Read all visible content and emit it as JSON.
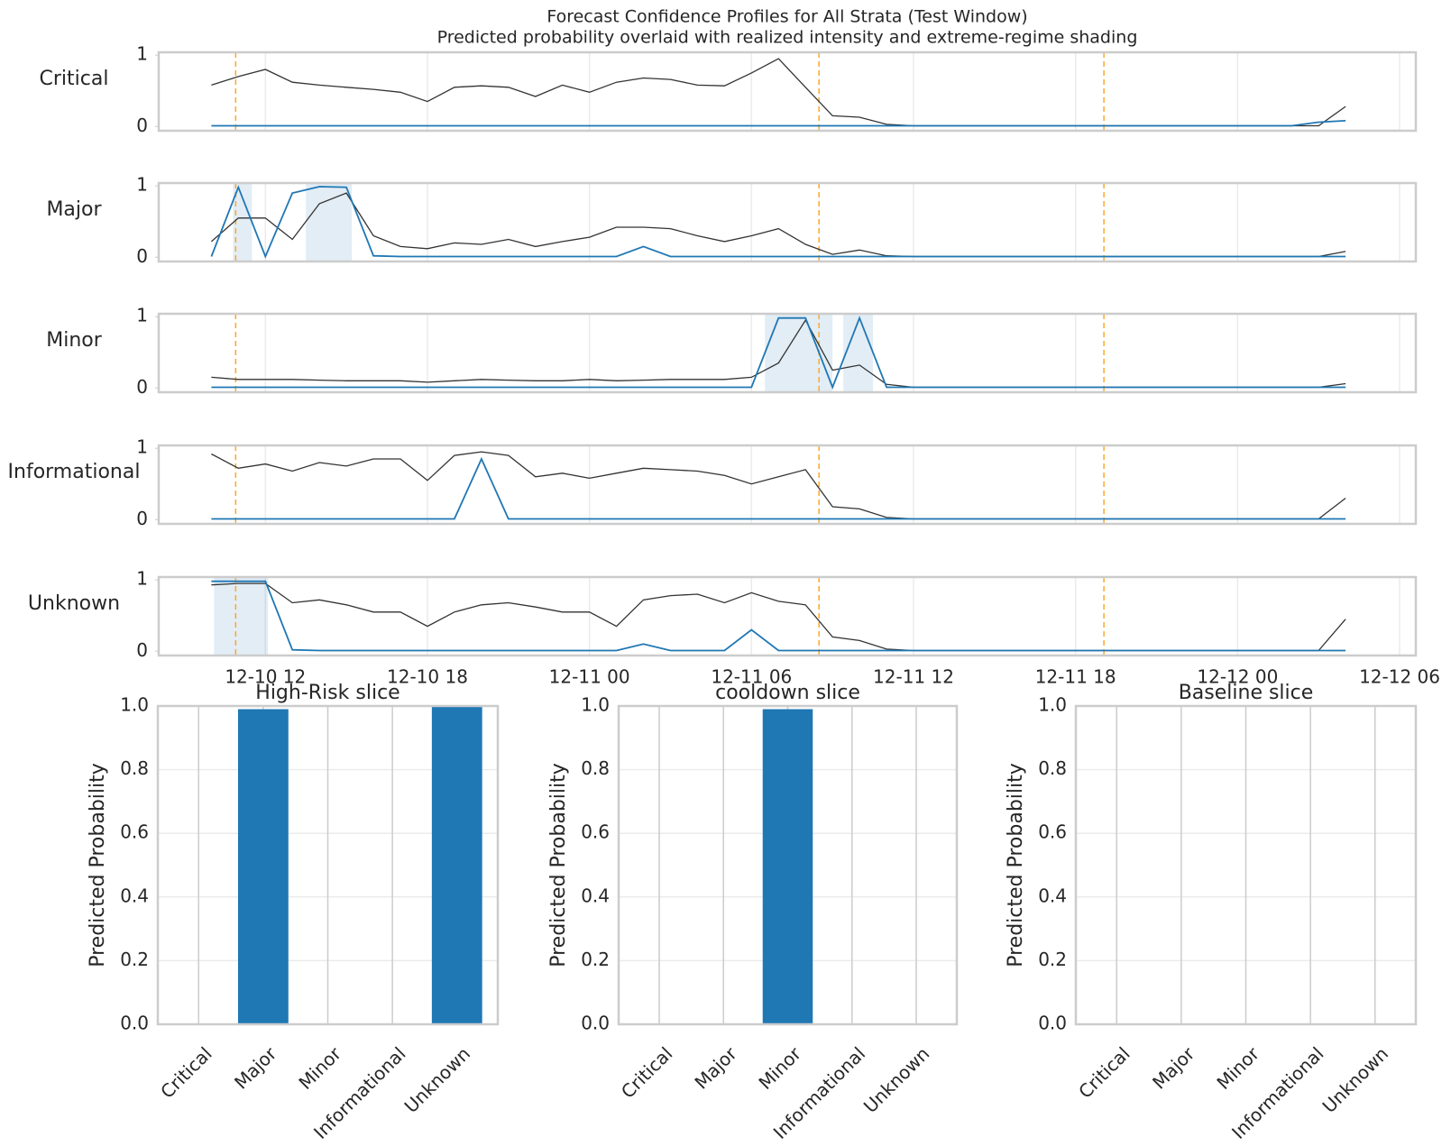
{
  "suptitle": "Forecast Confidence Profiles for All Strata (Test Window)",
  "subtitle": "Predicted probability overlaid with realized intensity and extreme-regime shading",
  "shared_x": {
    "x": [
      10,
      11,
      12,
      13,
      14,
      15,
      16,
      17,
      18,
      19,
      20,
      21,
      22,
      23,
      24,
      25,
      26,
      27,
      28,
      29,
      30,
      31,
      32,
      33,
      34,
      35,
      36,
      37,
      38,
      39,
      40,
      41,
      42,
      43,
      44,
      45,
      46,
      47,
      48,
      49,
      50,
      51,
      52
    ],
    "xlim": [
      8.05,
      54.6
    ],
    "xticks": [
      {
        "value": 12,
        "label": "12-10 12"
      },
      {
        "value": 18,
        "label": "12-10 18"
      },
      {
        "value": 24,
        "label": "12-11 00"
      },
      {
        "value": 30,
        "label": "12-11 06"
      },
      {
        "value": 36,
        "label": "12-11 12"
      },
      {
        "value": 42,
        "label": "12-11 18"
      },
      {
        "value": 48,
        "label": "12-12 00"
      },
      {
        "value": 54,
        "label": "12-12 06"
      }
    ],
    "vlines": [
      10.9,
      32.5,
      43.05
    ],
    "vline_color": "#ffa726"
  },
  "chart_data": [
    {
      "type": "line",
      "ylabel": "Critical",
      "ylim": [
        -0.06,
        1.04
      ],
      "yticks": [
        0,
        1
      ],
      "grid": true,
      "spans": [],
      "span_color": "#1f77b4",
      "series": [
        {
          "color": "#333333",
          "values": [
            0.58,
            0.7,
            0.8,
            0.62,
            0.58,
            0.55,
            0.52,
            0.48,
            0.35,
            0.55,
            0.57,
            0.55,
            0.42,
            0.58,
            0.48,
            0.62,
            0.68,
            0.66,
            0.58,
            0.57,
            0.75,
            0.95,
            0.55,
            0.15,
            0.13,
            0.03,
            0.01,
            0.01,
            0.01,
            0.01,
            0.01,
            0.01,
            0.01,
            0.01,
            0.01,
            0.01,
            0.01,
            0.01,
            0.01,
            0.01,
            0.01,
            0.01,
            0.28
          ]
        },
        {
          "color": "#1f77b4",
          "values": [
            0.01,
            0.01,
            0.01,
            0.01,
            0.01,
            0.01,
            0.01,
            0.01,
            0.01,
            0.01,
            0.01,
            0.01,
            0.01,
            0.01,
            0.01,
            0.01,
            0.01,
            0.01,
            0.01,
            0.01,
            0.01,
            0.01,
            0.01,
            0.01,
            0.01,
            0.01,
            0.01,
            0.01,
            0.01,
            0.01,
            0.01,
            0.01,
            0.01,
            0.01,
            0.01,
            0.01,
            0.01,
            0.01,
            0.01,
            0.01,
            0.01,
            0.06,
            0.08
          ]
        }
      ]
    },
    {
      "type": "line",
      "ylabel": "Major",
      "ylim": [
        -0.06,
        1.04
      ],
      "yticks": [
        0,
        1
      ],
      "grid": true,
      "spans": [
        [
          10.8,
          11.5
        ],
        [
          13.5,
          15.2
        ]
      ],
      "span_color": "#1f77b4",
      "series": [
        {
          "color": "#333333",
          "values": [
            0.22,
            0.55,
            0.55,
            0.25,
            0.75,
            0.9,
            0.3,
            0.15,
            0.12,
            0.2,
            0.18,
            0.25,
            0.15,
            0.22,
            0.28,
            0.42,
            0.42,
            0.4,
            0.3,
            0.22,
            0.3,
            0.4,
            0.18,
            0.04,
            0.1,
            0.02,
            0.01,
            0.01,
            0.01,
            0.01,
            0.01,
            0.01,
            0.01,
            0.01,
            0.01,
            0.01,
            0.01,
            0.01,
            0.01,
            0.01,
            0.01,
            0.01,
            0.08
          ]
        },
        {
          "color": "#1f77b4",
          "values": [
            0.01,
            0.98,
            0.01,
            0.9,
            0.99,
            0.98,
            0.02,
            0.01,
            0.01,
            0.01,
            0.01,
            0.01,
            0.01,
            0.01,
            0.01,
            0.01,
            0.15,
            0.01,
            0.01,
            0.01,
            0.01,
            0.01,
            0.01,
            0.01,
            0.01,
            0.01,
            0.01,
            0.01,
            0.01,
            0.01,
            0.01,
            0.01,
            0.01,
            0.01,
            0.01,
            0.01,
            0.01,
            0.01,
            0.01,
            0.01,
            0.01,
            0.01,
            0.01
          ]
        }
      ]
    },
    {
      "type": "line",
      "ylabel": "Minor",
      "ylim": [
        -0.06,
        1.04
      ],
      "yticks": [
        0,
        1
      ],
      "grid": true,
      "spans": [
        [
          30.5,
          33.0
        ],
        [
          33.4,
          34.5
        ]
      ],
      "span_color": "#1f77b4",
      "series": [
        {
          "color": "#333333",
          "values": [
            0.15,
            0.12,
            0.12,
            0.12,
            0.11,
            0.1,
            0.1,
            0.1,
            0.08,
            0.1,
            0.12,
            0.11,
            0.1,
            0.1,
            0.12,
            0.1,
            0.11,
            0.12,
            0.12,
            0.12,
            0.15,
            0.35,
            0.95,
            0.25,
            0.32,
            0.05,
            0.01,
            0.01,
            0.01,
            0.01,
            0.01,
            0.01,
            0.01,
            0.01,
            0.01,
            0.01,
            0.01,
            0.01,
            0.01,
            0.01,
            0.01,
            0.01,
            0.06
          ]
        },
        {
          "color": "#1f77b4",
          "values": [
            0.01,
            0.01,
            0.01,
            0.01,
            0.01,
            0.01,
            0.01,
            0.01,
            0.01,
            0.01,
            0.01,
            0.01,
            0.01,
            0.01,
            0.01,
            0.01,
            0.01,
            0.01,
            0.01,
            0.01,
            0.01,
            0.98,
            0.98,
            0.01,
            0.98,
            0.01,
            0.01,
            0.01,
            0.01,
            0.01,
            0.01,
            0.01,
            0.01,
            0.01,
            0.01,
            0.01,
            0.01,
            0.01,
            0.01,
            0.01,
            0.01,
            0.01,
            0.01
          ]
        }
      ]
    },
    {
      "type": "line",
      "ylabel": "Informational",
      "ylim": [
        -0.06,
        1.04
      ],
      "yticks": [
        0,
        1
      ],
      "grid": true,
      "spans": [],
      "span_color": "#1f77b4",
      "series": [
        {
          "color": "#333333",
          "values": [
            0.92,
            0.72,
            0.78,
            0.68,
            0.8,
            0.75,
            0.85,
            0.85,
            0.55,
            0.9,
            0.95,
            0.9,
            0.6,
            0.65,
            0.58,
            0.65,
            0.72,
            0.7,
            0.68,
            0.62,
            0.5,
            0.6,
            0.7,
            0.18,
            0.15,
            0.03,
            0.01,
            0.01,
            0.01,
            0.01,
            0.01,
            0.01,
            0.01,
            0.01,
            0.01,
            0.01,
            0.01,
            0.01,
            0.01,
            0.01,
            0.01,
            0.01,
            0.3
          ]
        },
        {
          "color": "#1f77b4",
          "values": [
            0.01,
            0.01,
            0.01,
            0.01,
            0.01,
            0.01,
            0.01,
            0.01,
            0.01,
            0.01,
            0.85,
            0.01,
            0.01,
            0.01,
            0.01,
            0.01,
            0.01,
            0.01,
            0.01,
            0.01,
            0.01,
            0.01,
            0.01,
            0.01,
            0.01,
            0.01,
            0.01,
            0.01,
            0.01,
            0.01,
            0.01,
            0.01,
            0.01,
            0.01,
            0.01,
            0.01,
            0.01,
            0.01,
            0.01,
            0.01,
            0.01,
            0.01,
            0.01
          ]
        }
      ]
    },
    {
      "type": "line",
      "ylabel": "Unknown",
      "ylim": [
        -0.06,
        1.04
      ],
      "yticks": [
        0,
        1
      ],
      "grid": true,
      "spans": [
        [
          10.1,
          12.1
        ]
      ],
      "span_color": "#1f77b4",
      "series": [
        {
          "color": "#333333",
          "values": [
            0.93,
            0.95,
            0.95,
            0.68,
            0.72,
            0.65,
            0.55,
            0.55,
            0.35,
            0.55,
            0.65,
            0.68,
            0.62,
            0.55,
            0.55,
            0.35,
            0.72,
            0.78,
            0.8,
            0.68,
            0.82,
            0.7,
            0.65,
            0.2,
            0.15,
            0.03,
            0.01,
            0.01,
            0.01,
            0.01,
            0.01,
            0.01,
            0.01,
            0.01,
            0.01,
            0.01,
            0.01,
            0.01,
            0.01,
            0.01,
            0.01,
            0.01,
            0.45
          ]
        },
        {
          "color": "#1f77b4",
          "values": [
            0.98,
            0.98,
            0.98,
            0.02,
            0.01,
            0.01,
            0.01,
            0.01,
            0.01,
            0.01,
            0.01,
            0.01,
            0.01,
            0.01,
            0.01,
            0.01,
            0.1,
            0.01,
            0.01,
            0.01,
            0.3,
            0.01,
            0.01,
            0.01,
            0.01,
            0.01,
            0.01,
            0.01,
            0.01,
            0.01,
            0.01,
            0.01,
            0.01,
            0.01,
            0.01,
            0.01,
            0.01,
            0.01,
            0.01,
            0.01,
            0.01,
            0.01,
            0.01
          ]
        }
      ]
    },
    {
      "type": "bar",
      "title": "High-Risk slice",
      "ylabel": "Predicted Probability",
      "color": "#1f77b4",
      "categories": [
        "Critical",
        "Major",
        "Minor",
        "Informational",
        "Unknown"
      ],
      "values": [
        0,
        0.99,
        0,
        0,
        1.0
      ],
      "ylim": [
        0,
        1
      ],
      "yticks": [
        {
          "value": 0,
          "label": "0.0"
        },
        0.2,
        0.4,
        0.6,
        0.8,
        {
          "value": 1,
          "label": "1.0"
        }
      ],
      "grid": true
    },
    {
      "type": "bar",
      "title": "cooldown slice",
      "ylabel": "Predicted Probability",
      "color": "#1f77b4",
      "categories": [
        "Critical",
        "Major",
        "Minor",
        "Informational",
        "Unknown"
      ],
      "values": [
        0,
        0,
        0.99,
        0,
        0
      ],
      "ylim": [
        0,
        1
      ],
      "yticks": [
        {
          "value": 0,
          "label": "0.0"
        },
        0.2,
        0.4,
        0.6,
        0.8,
        {
          "value": 1,
          "label": "1.0"
        }
      ],
      "grid": true
    },
    {
      "type": "bar",
      "title": "Baseline slice",
      "ylabel": "Predicted Probability",
      "color": "#1f77b4",
      "categories": [
        "Critical",
        "Major",
        "Minor",
        "Informational",
        "Unknown"
      ],
      "values": [
        0,
        0,
        0,
        0,
        0
      ],
      "ylim": [
        0,
        1
      ],
      "yticks": [
        {
          "value": 0,
          "label": "0.0"
        },
        0.2,
        0.4,
        0.6,
        0.8,
        {
          "value": 1,
          "label": "1.0"
        }
      ],
      "grid": true
    }
  ]
}
